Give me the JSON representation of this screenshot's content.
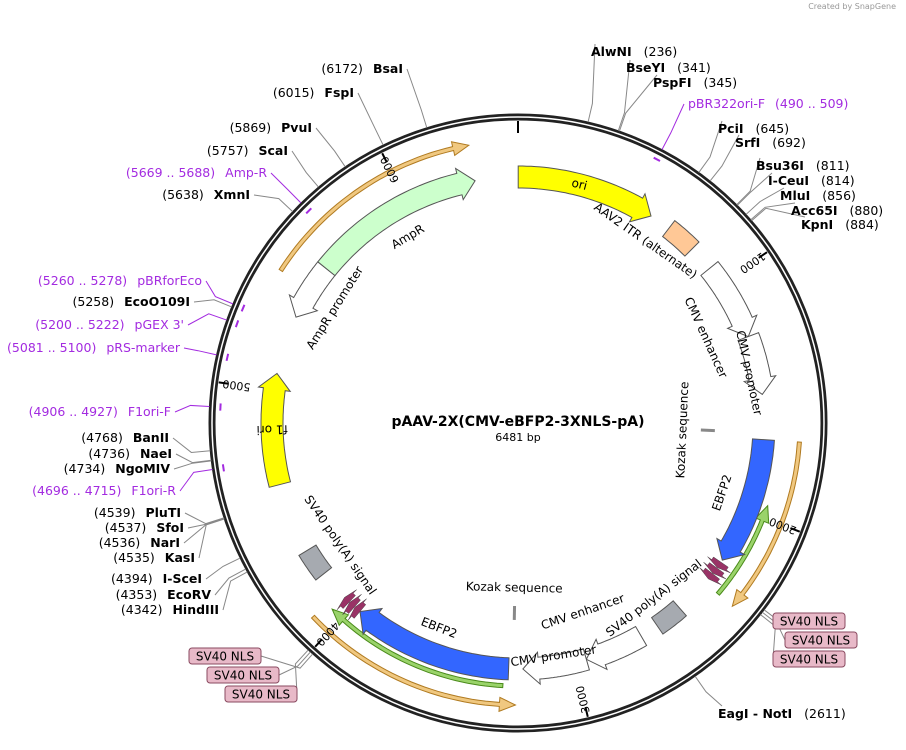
{
  "credit": "Created by SnapGene",
  "plasmid": {
    "name": "pAAV-2X(CMV-eBFP2-3XNLS-pA)",
    "length_label": "6481 bp",
    "length": 6481
  },
  "ticks": [
    "1000",
    "2000",
    "3000",
    "4000",
    "5000",
    "6000"
  ],
  "features": [
    {
      "name": "ori",
      "start": 1,
      "end": 589,
      "strand": 1,
      "kind": "arrow",
      "track": "mid",
      "color": "#ffff00"
    },
    {
      "name": "AAV2 ITR (alternate)",
      "start": 680,
      "end": 810,
      "strand": 0,
      "kind": "box",
      "track": "mid",
      "color": "#ffc896"
    },
    {
      "name": "CMV enhancer",
      "start": 920,
      "end": 1250,
      "strand": 1,
      "kind": "arrow",
      "track": "mid",
      "color": "#ffffff"
    },
    {
      "name": "CMV promoter",
      "start": 1250,
      "end": 1500,
      "strand": 1,
      "kind": "arrow",
      "track": "mid",
      "color": "#ffffff"
    },
    {
      "name": "Kozak sequence",
      "start": 1660,
      "end": 1668,
      "strand": 0,
      "kind": "mark",
      "track": "inner",
      "color": "#888888"
    },
    {
      "name": "EBFP2",
      "start": 1690,
      "end": 2230,
      "strand": 1,
      "kind": "arrow",
      "track": "mid",
      "color": "#3366ff"
    },
    {
      "name": "SV40 NLS",
      "start": 2240,
      "end": 2330,
      "strand": 1,
      "kind": "nls",
      "track": "mid",
      "color": "#993366"
    },
    {
      "name": "SV40 poly(A) signal",
      "start": 2500,
      "end": 2620,
      "strand": 0,
      "kind": "box",
      "track": "mid",
      "color": "#a6aab0"
    },
    {
      "name": "CMV enhancer",
      "start": 2700,
      "end": 2950,
      "strand": 1,
      "kind": "arrow",
      "track": "mid",
      "color": "#ffffff"
    },
    {
      "name": "CMV promoter",
      "start": 2950,
      "end": 3220,
      "strand": 1,
      "kind": "arrow",
      "track": "mid",
      "color": "#ffffff"
    },
    {
      "name": "Kozak sequence",
      "start": 3260,
      "end": 3268,
      "strand": 0,
      "kind": "mark",
      "track": "inner",
      "color": "#888888"
    },
    {
      "name": "EBFP2",
      "start": 3280,
      "end": 3960,
      "strand": 1,
      "kind": "arrow",
      "track": "mid",
      "color": "#3366ff"
    },
    {
      "name": "SV40 NLS",
      "start": 3960,
      "end": 4050,
      "strand": 1,
      "kind": "nls",
      "track": "mid",
      "color": "#993366"
    },
    {
      "name": "SV40 poly(A) signal",
      "start": 4180,
      "end": 4300,
      "strand": 0,
      "kind": "box",
      "track": "mid",
      "color": "#a6aab0"
    },
    {
      "name": "f1 ori",
      "start": 4600,
      "end": 5070,
      "strand": 1,
      "kind": "arrow",
      "track": "mid",
      "color": "#ffff00"
    },
    {
      "name": "AmpR promoter",
      "start": 5320,
      "end": 5560,
      "strand": -1,
      "kind": "arrow",
      "track": "mid",
      "color": "#ffffff"
    },
    {
      "name": "AmpR",
      "start": 5560,
      "end": 6300,
      "strand": 1,
      "kind": "arrow",
      "track": "mid",
      "color": "#ccffcc"
    }
  ],
  "outer_features": [
    {
      "start": 1690,
      "end": 2350,
      "strand": 1,
      "color": "#f0c880",
      "track": "outer"
    },
    {
      "start": 1950,
      "end": 2350,
      "strand": -1,
      "color": "#9ad36a",
      "track": "outer2"
    },
    {
      "start": 3250,
      "end": 4080,
      "strand": -1,
      "color": "#f0c880",
      "track": "outer"
    },
    {
      "start": 3300,
      "end": 4050,
      "strand": 1,
      "color": "#9ad36a",
      "track": "outer2"
    },
    {
      "start": 5450,
      "end": 6300,
      "strand": 1,
      "color": "#f0c880",
      "track": "outer"
    }
  ],
  "enzymes": [
    {
      "name": "AlwNI",
      "pos": "(236)",
      "bp": 236
    },
    {
      "name": "BseYI",
      "pos": "(341)",
      "bp": 341
    },
    {
      "name": "PspFI",
      "pos": "(345)",
      "bp": 345
    },
    {
      "name": "PciI",
      "pos": "(645)",
      "bp": 645
    },
    {
      "name": "SrfI",
      "pos": "(692)",
      "bp": 692
    },
    {
      "name": "Bsu36I",
      "pos": "(811)",
      "bp": 811
    },
    {
      "name": "I-CeuI",
      "pos": "(814)",
      "bp": 814
    },
    {
      "name": "MluI",
      "pos": "(856)",
      "bp": 856
    },
    {
      "name": "Acc65I",
      "pos": "(880)",
      "bp": 880
    },
    {
      "name": "KpnI",
      "pos": "(884)",
      "bp": 884
    },
    {
      "name": "EagI  -  NotI",
      "pos": "(2611)",
      "bp": 2611
    },
    {
      "name": "HindIII",
      "pos": "(4342)",
      "bp": 4342
    },
    {
      "name": "EcoRV",
      "pos": "(4353)",
      "bp": 4353
    },
    {
      "name": "I-SceI",
      "pos": "(4394)",
      "bp": 4394
    },
    {
      "name": "KasI",
      "pos": "(4535)",
      "bp": 4535
    },
    {
      "name": "NarI",
      "pos": "(4536)",
      "bp": 4536
    },
    {
      "name": "SfoI",
      "pos": "(4537)",
      "bp": 4537
    },
    {
      "name": "PluTI",
      "pos": "(4539)",
      "bp": 4539
    },
    {
      "name": "NgoMIV",
      "pos": "(4734)",
      "bp": 4734
    },
    {
      "name": "NaeI",
      "pos": "(4736)",
      "bp": 4736
    },
    {
      "name": "BanII",
      "pos": "(4768)",
      "bp": 4768
    },
    {
      "name": "EcoO109I",
      "pos": "(5258)",
      "bp": 5258
    },
    {
      "name": "XmnI",
      "pos": "(5638)",
      "bp": 5638
    },
    {
      "name": "ScaI",
      "pos": "(5757)",
      "bp": 5757
    },
    {
      "name": "PvuI",
      "pos": "(5869)",
      "bp": 5869
    },
    {
      "name": "FspI",
      "pos": "(6015)",
      "bp": 6015
    },
    {
      "name": "BsaI",
      "pos": "(6172)",
      "bp": 6172
    }
  ],
  "primers": [
    {
      "name": "pBR322ori-F",
      "range": "(490 .. 509)",
      "bp": 500
    },
    {
      "name": "F1ori-R",
      "range": "(4696 .. 4715)",
      "bp": 4705
    },
    {
      "name": "F1ori-F",
      "range": "(4906 .. 4927)",
      "bp": 4916
    },
    {
      "name": "pRS-marker",
      "range": "(5081 .. 5100)",
      "bp": 5090
    },
    {
      "name": "pGEX 3'",
      "range": "(5200 .. 5222)",
      "bp": 5211
    },
    {
      "name": "pBRforEco",
      "range": "(5260 .. 5278)",
      "bp": 5269
    },
    {
      "name": "Amp-R",
      "range": "(5669 .. 5688)",
      "bp": 5678
    }
  ],
  "nls_labels": [
    {
      "text": "SV40 NLS",
      "bp": 2290
    },
    {
      "text": "SV40 NLS",
      "bp": 2300
    },
    {
      "text": "SV40 NLS",
      "bp": 2310
    },
    {
      "text": "SV40 NLS",
      "bp": 3990
    },
    {
      "text": "SV40 NLS",
      "bp": 4000
    },
    {
      "text": "SV40 NLS",
      "bp": 4010
    }
  ]
}
